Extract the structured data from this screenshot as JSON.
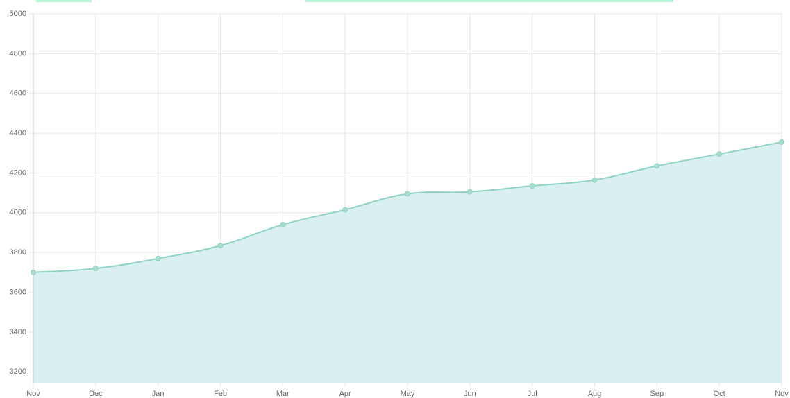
{
  "chart_data": {
    "type": "area",
    "categories": [
      "Nov",
      "Dec",
      "Jan",
      "Feb",
      "Mar",
      "Apr",
      "May",
      "Jun",
      "Jul",
      "Aug",
      "Sep",
      "Oct",
      "Nov"
    ],
    "series": [
      {
        "color": "#8fd3c4",
        "fill": "#d9eff0",
        "values": [
          3700,
          3720,
          3770,
          3835,
          3940,
          4015,
          4095,
          4105,
          4135,
          4165,
          4235,
          4295,
          4355
        ]
      }
    ],
    "ylim": [
      3145,
      5000
    ],
    "yticks": [
      3200,
      3400,
      3600,
      3800,
      4000,
      4200,
      4400,
      4600,
      4800,
      5000
    ],
    "grid": true
  }
}
